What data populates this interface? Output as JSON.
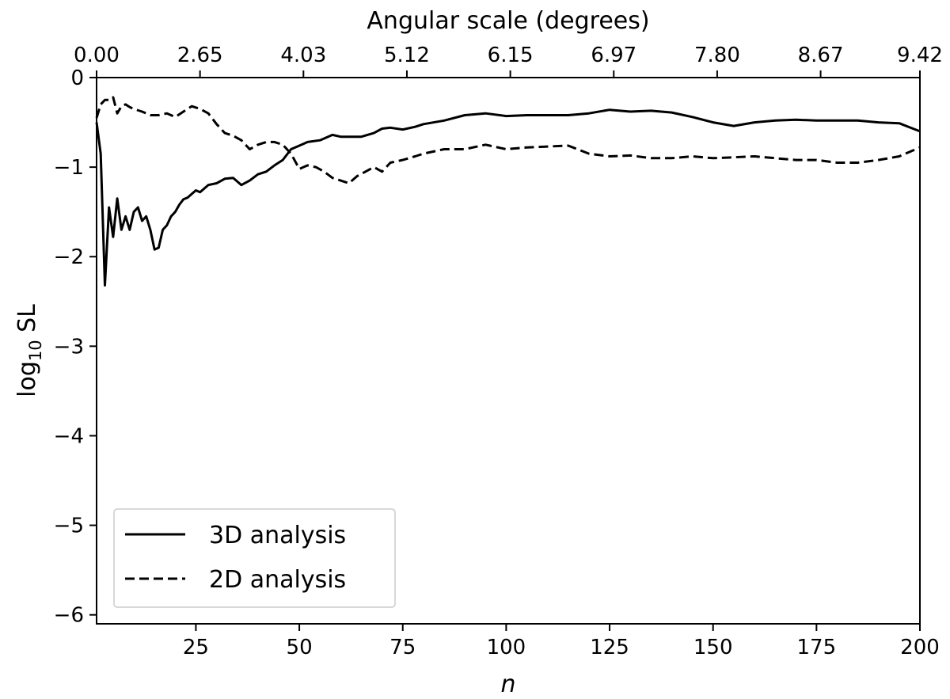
{
  "chart_data": {
    "type": "line",
    "xlabel": "n",
    "ylabel_base": "log",
    "ylabel_sub": "10",
    "ylabel_rest": " SL",
    "top_xlabel": "Angular scale (degrees)",
    "xlim": [
      1,
      200
    ],
    "ylim": [
      -6.1,
      0
    ],
    "x_ticks": [
      25,
      50,
      75,
      100,
      125,
      150,
      175,
      200
    ],
    "x_tick_labels": [
      "25",
      "50",
      "75",
      "100",
      "125",
      "150",
      "175",
      "200"
    ],
    "y_ticks": [
      0,
      -1,
      -2,
      -3,
      -4,
      -5,
      -6
    ],
    "y_tick_labels": [
      "0",
      "−1",
      "−2",
      "−3",
      "−4",
      "−5",
      "−6"
    ],
    "top_x_ticks": [
      1,
      26,
      51,
      76,
      101,
      126,
      151,
      176,
      200
    ],
    "top_x_tick_labels": [
      "0.00",
      "2.65",
      "4.03",
      "5.12",
      "6.15",
      "6.97",
      "7.80",
      "8.67",
      "9.42"
    ],
    "legend": {
      "position": "lower-left",
      "entries": [
        {
          "label": "3D analysis",
          "style": "solid"
        },
        {
          "label": "2D analysis",
          "style": "dashed"
        }
      ]
    },
    "series": [
      {
        "name": "3D analysis",
        "style": "solid",
        "color": "#000000",
        "x": [
          1,
          2,
          3,
          4,
          5,
          6,
          7,
          8,
          9,
          10,
          11,
          12,
          13,
          14,
          15,
          16,
          17,
          18,
          19,
          20,
          21,
          22,
          23,
          24,
          25,
          26,
          28,
          30,
          32,
          34,
          36,
          38,
          40,
          42,
          44,
          46,
          48,
          50,
          52,
          55,
          58,
          60,
          62,
          65,
          68,
          70,
          72,
          75,
          78,
          80,
          85,
          90,
          95,
          100,
          105,
          110,
          115,
          120,
          125,
          130,
          135,
          140,
          145,
          150,
          155,
          160,
          165,
          170,
          175,
          180,
          185,
          190,
          195,
          200
        ],
        "y": [
          -0.5,
          -0.85,
          -2.32,
          -1.45,
          -1.78,
          -1.35,
          -1.7,
          -1.55,
          -1.7,
          -1.5,
          -1.45,
          -1.6,
          -1.55,
          -1.7,
          -1.92,
          -1.9,
          -1.7,
          -1.65,
          -1.55,
          -1.5,
          -1.42,
          -1.36,
          -1.34,
          -1.3,
          -1.26,
          -1.28,
          -1.2,
          -1.18,
          -1.13,
          -1.12,
          -1.2,
          -1.15,
          -1.08,
          -1.05,
          -0.98,
          -0.92,
          -0.8,
          -0.76,
          -0.72,
          -0.7,
          -0.64,
          -0.66,
          -0.66,
          -0.66,
          -0.62,
          -0.57,
          -0.56,
          -0.58,
          -0.55,
          -0.52,
          -0.48,
          -0.42,
          -0.4,
          -0.43,
          -0.42,
          -0.42,
          -0.42,
          -0.4,
          -0.36,
          -0.38,
          -0.37,
          -0.39,
          -0.44,
          -0.5,
          -0.54,
          -0.5,
          -0.48,
          -0.47,
          -0.48,
          -0.48,
          -0.48,
          -0.5,
          -0.51,
          -0.6
        ]
      },
      {
        "name": "2D analysis",
        "style": "dashed",
        "color": "#000000",
        "x": [
          1,
          2,
          3,
          4,
          5,
          6,
          7,
          8,
          9,
          10,
          12,
          14,
          16,
          18,
          20,
          22,
          24,
          26,
          28,
          30,
          32,
          34,
          36,
          38,
          40,
          42,
          44,
          46,
          48,
          50,
          52,
          54,
          56,
          58,
          60,
          62,
          64,
          66,
          68,
          70,
          72,
          75,
          78,
          80,
          85,
          90,
          95,
          100,
          105,
          110,
          115,
          120,
          125,
          130,
          135,
          140,
          145,
          150,
          155,
          160,
          165,
          170,
          175,
          180,
          185,
          190,
          195,
          200
        ],
        "y": [
          -0.45,
          -0.3,
          -0.25,
          -0.25,
          -0.22,
          -0.4,
          -0.32,
          -0.3,
          -0.33,
          -0.35,
          -0.38,
          -0.42,
          -0.42,
          -0.4,
          -0.44,
          -0.38,
          -0.32,
          -0.35,
          -0.4,
          -0.52,
          -0.62,
          -0.65,
          -0.7,
          -0.8,
          -0.75,
          -0.72,
          -0.72,
          -0.75,
          -0.85,
          -1.02,
          -0.98,
          -1.0,
          -1.05,
          -1.12,
          -1.15,
          -1.18,
          -1.1,
          -1.05,
          -1.0,
          -1.05,
          -0.95,
          -0.92,
          -0.88,
          -0.85,
          -0.8,
          -0.8,
          -0.75,
          -0.8,
          -0.78,
          -0.77,
          -0.76,
          -0.85,
          -0.88,
          -0.87,
          -0.9,
          -0.9,
          -0.88,
          -0.9,
          -0.89,
          -0.88,
          -0.9,
          -0.92,
          -0.92,
          -0.95,
          -0.95,
          -0.92,
          -0.88,
          -0.78
        ]
      }
    ]
  }
}
